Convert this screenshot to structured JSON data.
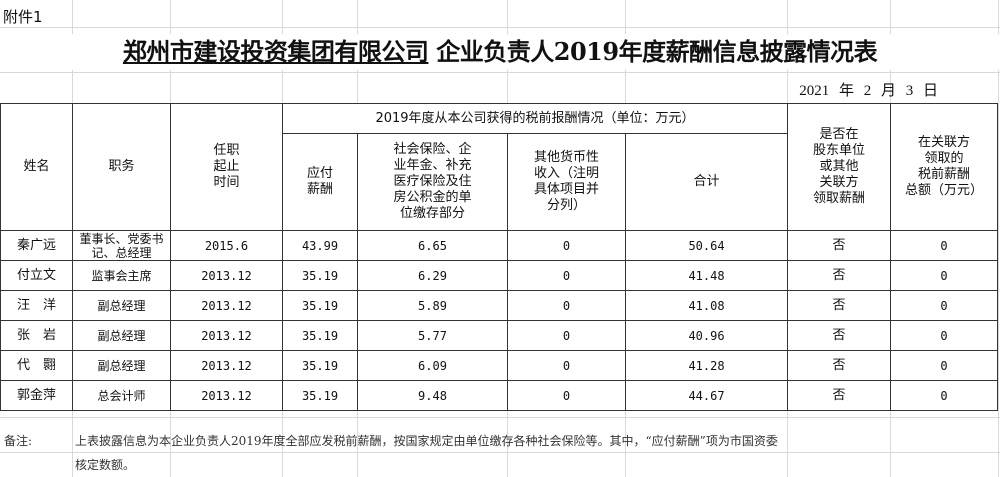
{
  "attachment_label": "附件1",
  "title": {
    "underlined": "郑州市建设投资集团有限公司",
    "rest": " 企业负责人2019年度薪酬信息披露情况表"
  },
  "date": "2021 年 2 月 3 日",
  "table": {
    "headers": {
      "name": "姓名",
      "position": "职务",
      "tenure": "任职\n起止\n时间",
      "group": "2019年度从本公司获得的税前报酬情况（单位：万元）",
      "payable": "应付\n薪酬",
      "insurance": "社会保险、企\n业年金、补充\n医疗保险及住\n房公积金的单\n位缴存部分",
      "other": "其他货币性\n收入（注明\n具体项目并\n分列）",
      "total": "合计",
      "shareholder": "是否在\n股东单位\n或其他\n关联方\n领取薪酬",
      "related": "在关联方\n领取的\n税前薪酬\n总额（万元）"
    },
    "rows": [
      {
        "name": "秦广远",
        "position": "董事长、党委书记、总经理",
        "tenure": "2015.6",
        "payable": "43.99",
        "insurance": "6.65",
        "other": "0",
        "total": "50.64",
        "shareholder": "否",
        "related": "0"
      },
      {
        "name": "付立文",
        "position": "监事会主席",
        "tenure": "2013.12",
        "payable": "35.19",
        "insurance": "6.29",
        "other": "0",
        "total": "41.48",
        "shareholder": "否",
        "related": "0"
      },
      {
        "name": "汪　洋",
        "position": "副总经理",
        "tenure": "2013.12",
        "payable": "35.19",
        "insurance": "5.89",
        "other": "0",
        "total": "41.08",
        "shareholder": "否",
        "related": "0"
      },
      {
        "name": "张　岩",
        "position": "副总经理",
        "tenure": "2013.12",
        "payable": "35.19",
        "insurance": "5.77",
        "other": "0",
        "total": "40.96",
        "shareholder": "否",
        "related": "0"
      },
      {
        "name": "代　翾",
        "position": "副总经理",
        "tenure": "2013.12",
        "payable": "35.19",
        "insurance": "6.09",
        "other": "0",
        "total": "41.28",
        "shareholder": "否",
        "related": "0"
      },
      {
        "name": "郭金萍",
        "position": "总会计师",
        "tenure": "2013.12",
        "payable": "35.19",
        "insurance": "9.48",
        "other": "0",
        "total": "44.67",
        "shareholder": "否",
        "related": "0"
      }
    ]
  },
  "notes": {
    "label": "备注:",
    "line1": "上表披露信息为本企业负责人2019年度全部应发税前薪酬，按国家规定由单位缴存各种社会保险等。其中，“应付薪酬”项为市国资委",
    "line2": "核定数额。"
  }
}
